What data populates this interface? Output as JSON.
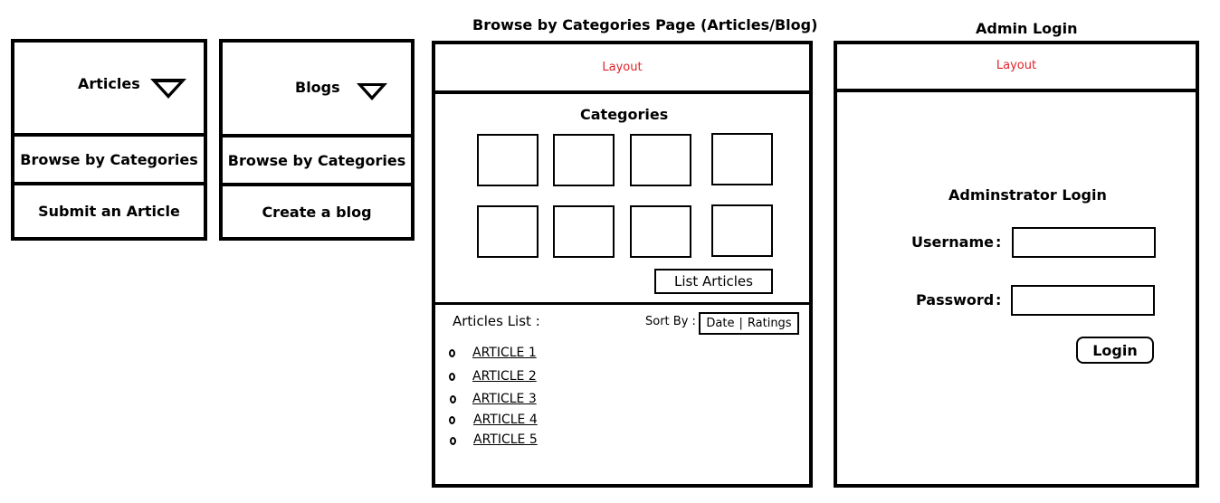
{
  "menus": {
    "articles": {
      "title": "Articles",
      "items": [
        "Browse by Categories",
        "Submit an Article"
      ]
    },
    "blogs": {
      "title": "Blogs",
      "items": [
        "Browse by Categories",
        "Create a blog"
      ]
    }
  },
  "browse_page": {
    "caption": "Browse by Categories Page (Articles/Blog)",
    "layout_label": "Layout",
    "categories_title": "Categories",
    "list_articles_button": "List Articles",
    "articles_list_label": "Articles List :",
    "sort_by_label": "Sort By :",
    "sort_date": "Date",
    "sort_separator": "|",
    "sort_ratings": "Ratings",
    "articles": [
      "ARTICLE 1",
      "ARTICLE 2",
      "ARTICLE 3",
      "ARTICLE 4",
      "ARTICLE 5"
    ]
  },
  "admin_page": {
    "caption": "Admin Login",
    "layout_label": "Layout",
    "form_title": "Adminstrator Login",
    "username_label": "Username",
    "password_label": "Password",
    "label_separator": ":",
    "login_button": "Login"
  },
  "colors": {
    "layout_text": "#e0242a",
    "border": "#000000"
  }
}
